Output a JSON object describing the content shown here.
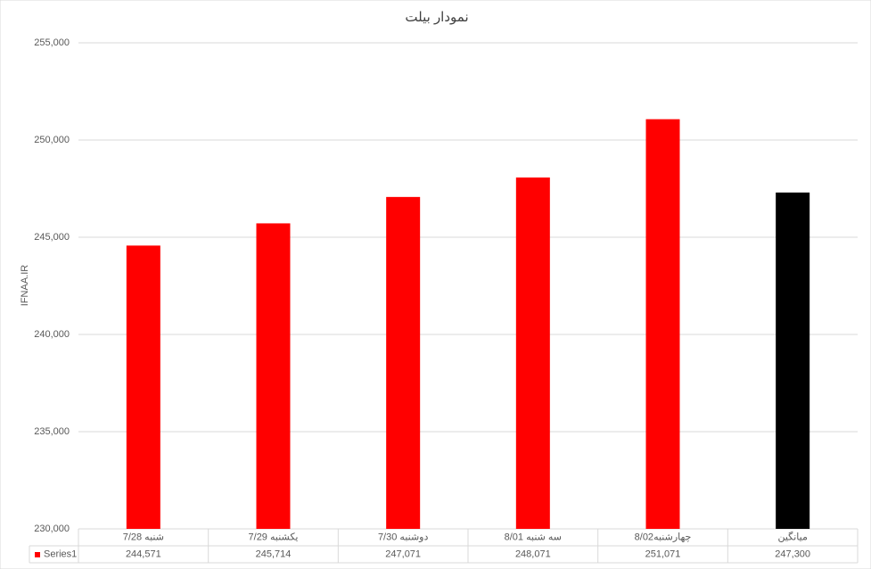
{
  "chart_data": {
    "type": "bar",
    "title": "نمودار بیلت",
    "y_label": "IFNAA.IR",
    "categories": [
      "شنبه 7/28",
      "یکشنبه 7/29",
      "دوشنبه 7/30",
      "سه شنبه 8/01",
      "چهارشنبه8/02",
      "میانگین"
    ],
    "series": [
      {
        "name": "Series1",
        "color": "#ff0000",
        "values": [
          244571,
          245714,
          247071,
          248071,
          251071,
          247300
        ],
        "value_labels": [
          "244,571",
          "245,714",
          "247,071",
          "248,071",
          "251,071",
          "247,300"
        ],
        "colors": [
          "#ff0000",
          "#ff0000",
          "#ff0000",
          "#ff0000",
          "#ff0000",
          "#000000"
        ]
      }
    ],
    "ylim": [
      230000,
      255000
    ],
    "yticks": [
      {
        "value": 230000,
        "label": "230,000"
      },
      {
        "value": 235000,
        "label": "235,000"
      },
      {
        "value": 240000,
        "label": "240,000"
      },
      {
        "value": 245000,
        "label": "245,000"
      },
      {
        "value": 250000,
        "label": "250,000"
      },
      {
        "value": 255000,
        "label": "255,000"
      }
    ],
    "grid": true,
    "data_table": true
  }
}
